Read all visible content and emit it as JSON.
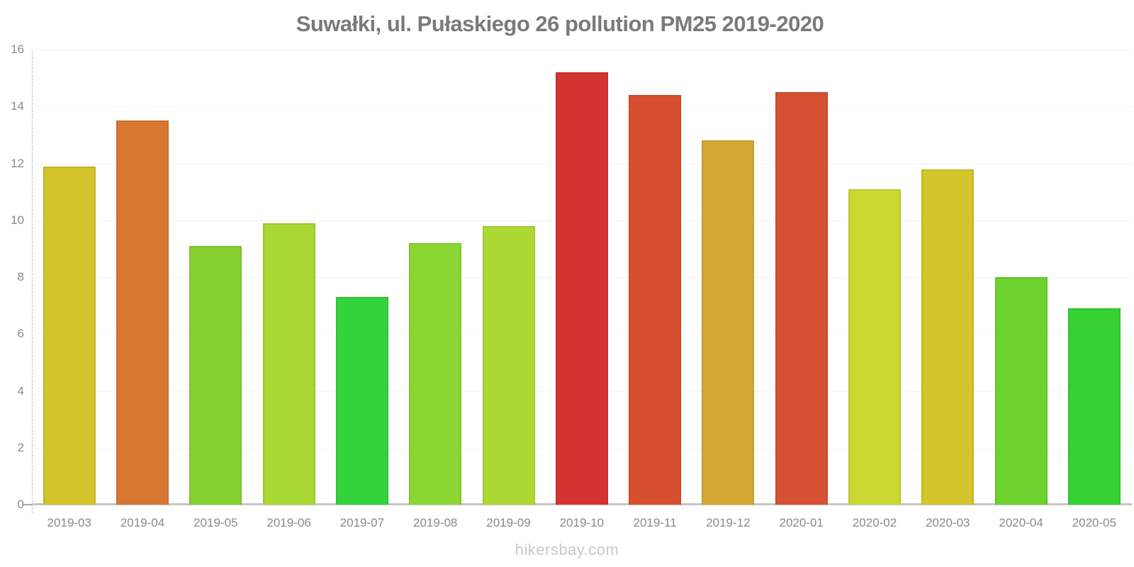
{
  "chart_data": {
    "type": "bar",
    "title": "Suwałki, ul. Pułaskiego 26 pollution PM25 2019-2020",
    "categories": [
      "2019-03",
      "2019-04",
      "2019-05",
      "2019-06",
      "2019-07",
      "2019-08",
      "2019-09",
      "2019-10",
      "2019-11",
      "2019-12",
      "2020-01",
      "2020-02",
      "2020-03",
      "2020-04",
      "2020-05"
    ],
    "values": [
      11.9,
      13.5,
      9.1,
      9.9,
      7.3,
      9.2,
      9.8,
      15.2,
      14.4,
      12.8,
      14.5,
      11.1,
      11.8,
      8.0,
      6.9
    ],
    "bar_colors": [
      "#d4c42c",
      "#d87732",
      "#85d230",
      "#a9d834",
      "#33d33b",
      "#8bd632",
      "#add935",
      "#d33431",
      "#d64f2f",
      "#d6a834",
      "#d65033",
      "#c9d932",
      "#d4c52d",
      "#6cd32e",
      "#36d233"
    ],
    "xlabel": "",
    "ylabel": "",
    "ylim": [
      0,
      16
    ],
    "yticks": [
      0,
      2,
      4,
      6,
      8,
      10,
      12,
      14,
      16
    ],
    "grid": "horizontal-only",
    "legend": "none",
    "title_color": "#7a7a7a",
    "label_color": "#8a8a8a",
    "axis_color": "#c6c6c5"
  },
  "watermark": "hikersbay.com"
}
